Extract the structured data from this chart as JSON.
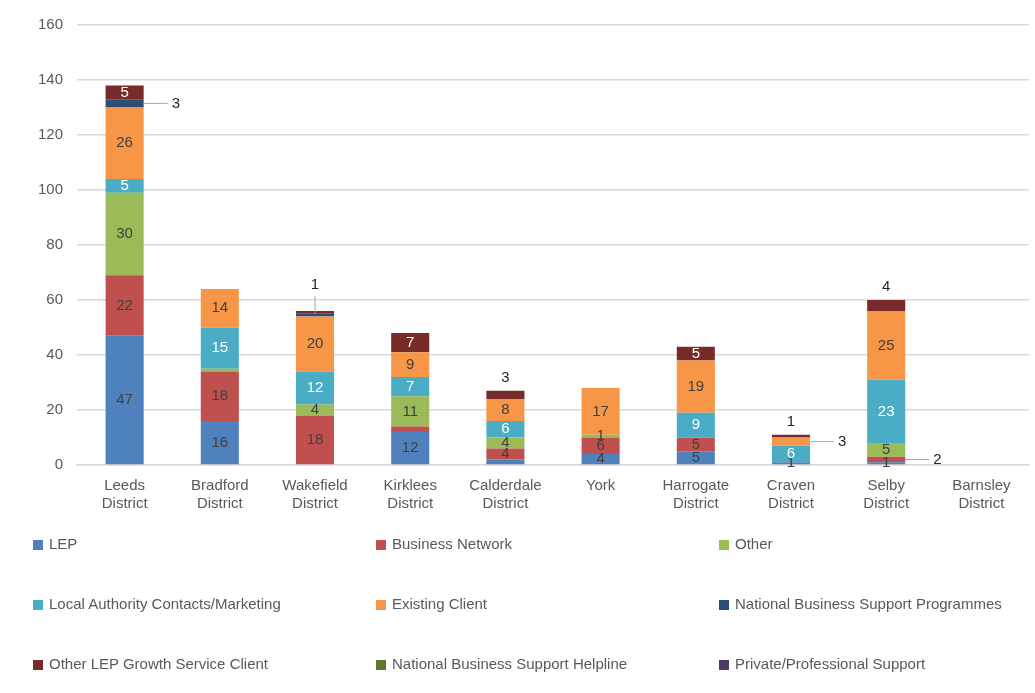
{
  "chart_data": {
    "type": "bar",
    "stacked": true,
    "categories": [
      "Leeds District",
      "Bradford District",
      "Wakefield District",
      "Kirklees District",
      "Calderdale District",
      "York",
      "Harrogate District",
      "Craven District",
      "Selby District",
      "Barnsley District"
    ],
    "ylim": [
      0,
      160
    ],
    "yticks": [
      0,
      20,
      40,
      60,
      80,
      100,
      120,
      140,
      160
    ],
    "grid": "y",
    "legend": "bottom",
    "series": [
      {
        "name": "LEP",
        "color": "#4f81bd",
        "values": [
          47,
          16,
          null,
          12,
          2,
          4,
          5,
          1,
          1,
          null
        ],
        "value_labels": [
          "47",
          "16",
          null,
          "12",
          null,
          "4",
          "5",
          "1",
          "1",
          null
        ]
      },
      {
        "name": "Business Network",
        "color": "#c0504d",
        "values": [
          22,
          18,
          18,
          2,
          4,
          6,
          5,
          null,
          2,
          null
        ],
        "value_labels": [
          "22",
          "18",
          "18",
          null,
          "4",
          "6",
          "5",
          null,
          "2",
          null
        ]
      },
      {
        "name": "Other",
        "color": "#9bbb59",
        "values": [
          30,
          1,
          4,
          11,
          4,
          1,
          null,
          null,
          5,
          null
        ],
        "value_labels": [
          "30",
          null,
          "4",
          "11",
          "4",
          "1",
          null,
          null,
          "5",
          null
        ]
      },
      {
        "name": "Local Authority Contacts/Marketing",
        "color": "#4bacc6",
        "values": [
          5,
          15,
          12,
          7,
          6,
          null,
          9,
          6,
          23,
          null
        ],
        "value_labels": [
          "5",
          "15",
          "12",
          "7",
          "6",
          null,
          "9",
          "6",
          "23",
          null
        ]
      },
      {
        "name": "Existing Client",
        "color": "#f79646",
        "values": [
          26,
          14,
          20,
          9,
          8,
          17,
          19,
          3,
          25,
          null
        ],
        "value_labels": [
          "26",
          "14",
          "20",
          "9",
          "8",
          "17",
          "19",
          "3",
          "25",
          null
        ]
      },
      {
        "name": "National Business Support Programmes",
        "color": "#2c4d75",
        "values": [
          3,
          null,
          1,
          null,
          null,
          null,
          null,
          null,
          null,
          null
        ],
        "value_labels": [
          "3",
          null,
          "1",
          null,
          null,
          null,
          null,
          null,
          null,
          null
        ]
      },
      {
        "name": "Other LEP Growth Service Client",
        "color": "#772c2a",
        "values": [
          5,
          null,
          1,
          7,
          3,
          null,
          5,
          1,
          4,
          null
        ],
        "value_labels": [
          "5",
          null,
          null,
          "7",
          "3",
          null,
          "5",
          "1",
          "4",
          null
        ]
      },
      {
        "name": "National Business Support Helpline",
        "color": "#5f7530",
        "values": [
          null,
          null,
          null,
          null,
          null,
          null,
          null,
          null,
          null,
          null
        ]
      },
      {
        "name": "Private/Professional Support",
        "color": "#4d3b62",
        "values": [
          null,
          null,
          null,
          null,
          null,
          null,
          null,
          null,
          null,
          null
        ]
      }
    ]
  }
}
